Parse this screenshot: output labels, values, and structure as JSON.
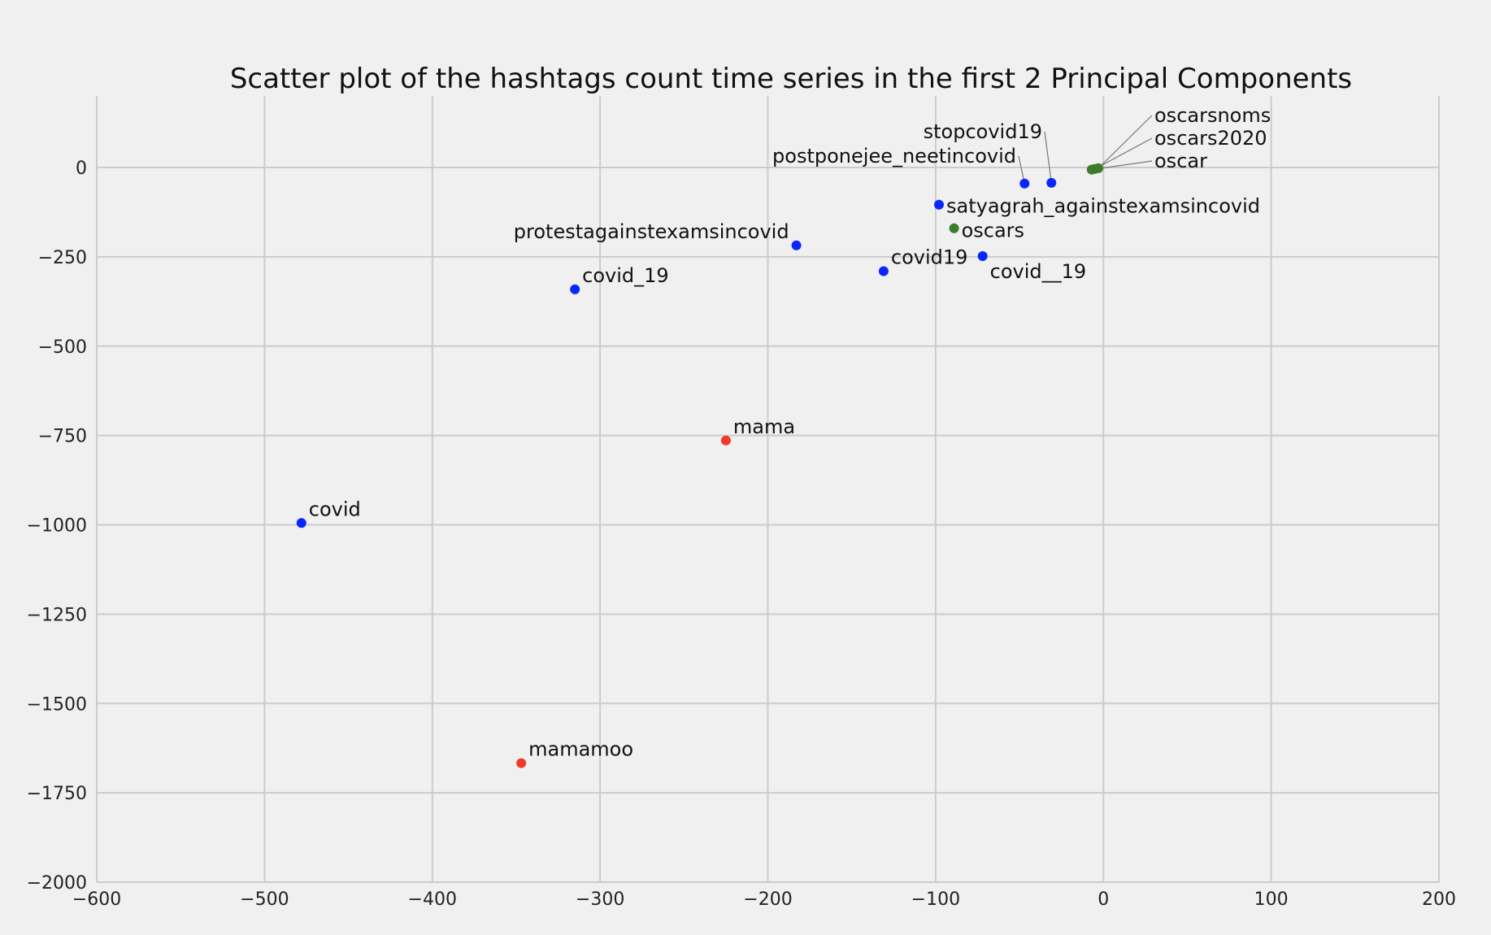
{
  "chart_data": {
    "type": "scatter",
    "title": "Scatter plot of the hashtags count time series in the first 2 Principal Components",
    "xlabel": "",
    "ylabel": "",
    "xlim": [
      -600,
      200
    ],
    "ylim": [
      -2000,
      200
    ],
    "xticks": [
      -600,
      -500,
      -400,
      -300,
      -200,
      -100,
      0,
      100,
      200
    ],
    "yticks": [
      0,
      -250,
      -500,
      -750,
      -1000,
      -1250,
      -1500,
      -1750,
      -2000
    ],
    "grid": true,
    "colors": {
      "blue": "#0a26ff",
      "red": "#f0392b",
      "green": "#3c7d2a"
    },
    "points": [
      {
        "label": "covid",
        "x": -478,
        "y": -995,
        "color": "blue"
      },
      {
        "label": "mamamoo",
        "x": -347,
        "y": -1667,
        "color": "red"
      },
      {
        "label": "mama",
        "x": -225,
        "y": -764,
        "color": "red"
      },
      {
        "label": "covid_19",
        "x": -315,
        "y": -341,
        "color": "blue"
      },
      {
        "label": "protestagainstexamsincovid",
        "x": -183,
        "y": -218,
        "color": "blue"
      },
      {
        "label": "covid​19",
        "x": -131,
        "y": -290,
        "color": "blue"
      },
      {
        "label": "satyagrah_againstexamsincovid",
        "x": -98,
        "y": -104,
        "color": "blue"
      },
      {
        "label": "oscars",
        "x": -89,
        "y": -170,
        "color": "green"
      },
      {
        "label": "covid__19",
        "x": -72,
        "y": -248,
        "color": "blue"
      },
      {
        "label": "postponejee_neetincovid",
        "x": -47,
        "y": -45,
        "color": "blue"
      },
      {
        "label": "stopcovid19",
        "x": -31,
        "y": -43,
        "color": "blue"
      },
      {
        "label": "oscar",
        "x": -7,
        "y": -6,
        "color": "green"
      },
      {
        "label": "oscars2020",
        "x": -5,
        "y": -4,
        "color": "green"
      },
      {
        "label": "oscarsnoms",
        "x": -3,
        "y": -2,
        "color": "green"
      }
    ]
  }
}
